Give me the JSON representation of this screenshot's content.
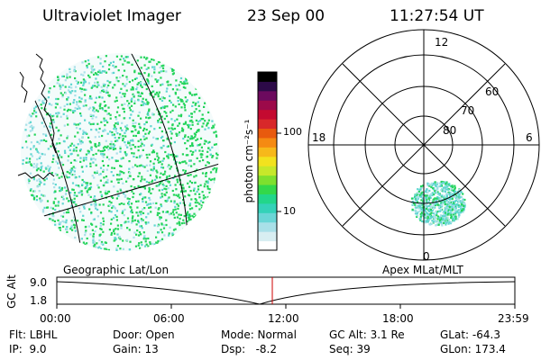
{
  "header": {
    "instrument": "Ultraviolet Imager",
    "date": "23 Sep 00",
    "time": "11:27:54 UT"
  },
  "colorbar": {
    "unit_label": "photon cm⁻²s⁻¹",
    "ticks": [
      "100",
      "10"
    ],
    "colors": [
      "#ffffff",
      "#d8eef2",
      "#a9e0e8",
      "#6ad6d6",
      "#34d2b8",
      "#22d68a",
      "#33d84a",
      "#7ee02e",
      "#c6e82a",
      "#f2e21e",
      "#f7b81a",
      "#f58a12",
      "#e85a0e",
      "#d8282a",
      "#c40a30",
      "#9c0a4a",
      "#6c0a5e",
      "#2c0a48",
      "#000000"
    ]
  },
  "polar": {
    "top_label": "12",
    "left_label": "18",
    "right_label": "6",
    "bottom_label": "0",
    "lat_labels": [
      "60",
      "70",
      "80"
    ]
  },
  "timeline": {
    "left_title": "Geographic Lat/Lon",
    "right_title": "Apex MLat/MLT",
    "y_axis_label": "GC Alt",
    "y_ticks": [
      "9.0",
      "1.8"
    ],
    "x_ticks": [
      "00:00",
      "06:00",
      "12:00",
      "18:00",
      "23:59"
    ],
    "marker_time": "11:27:54",
    "marker_color": "#cc0000"
  },
  "info": {
    "col1": [
      "Flt: LBHL",
      "IP:  9.0"
    ],
    "col2": [
      "Door: Open",
      "Gain: 13"
    ],
    "col3": [
      "Mode: Normal",
      "Dsp:   -8.2"
    ],
    "col4": [
      "GC Alt: 3.1 Re",
      "Seq: 39"
    ],
    "col5": [
      "GLat: -64.3",
      "GLon: 173.4"
    ]
  },
  "colors": {
    "dot_green": "#22d45a",
    "dot_cyan": "#5ed6d0",
    "dot_pale": "#a9e0e8"
  }
}
